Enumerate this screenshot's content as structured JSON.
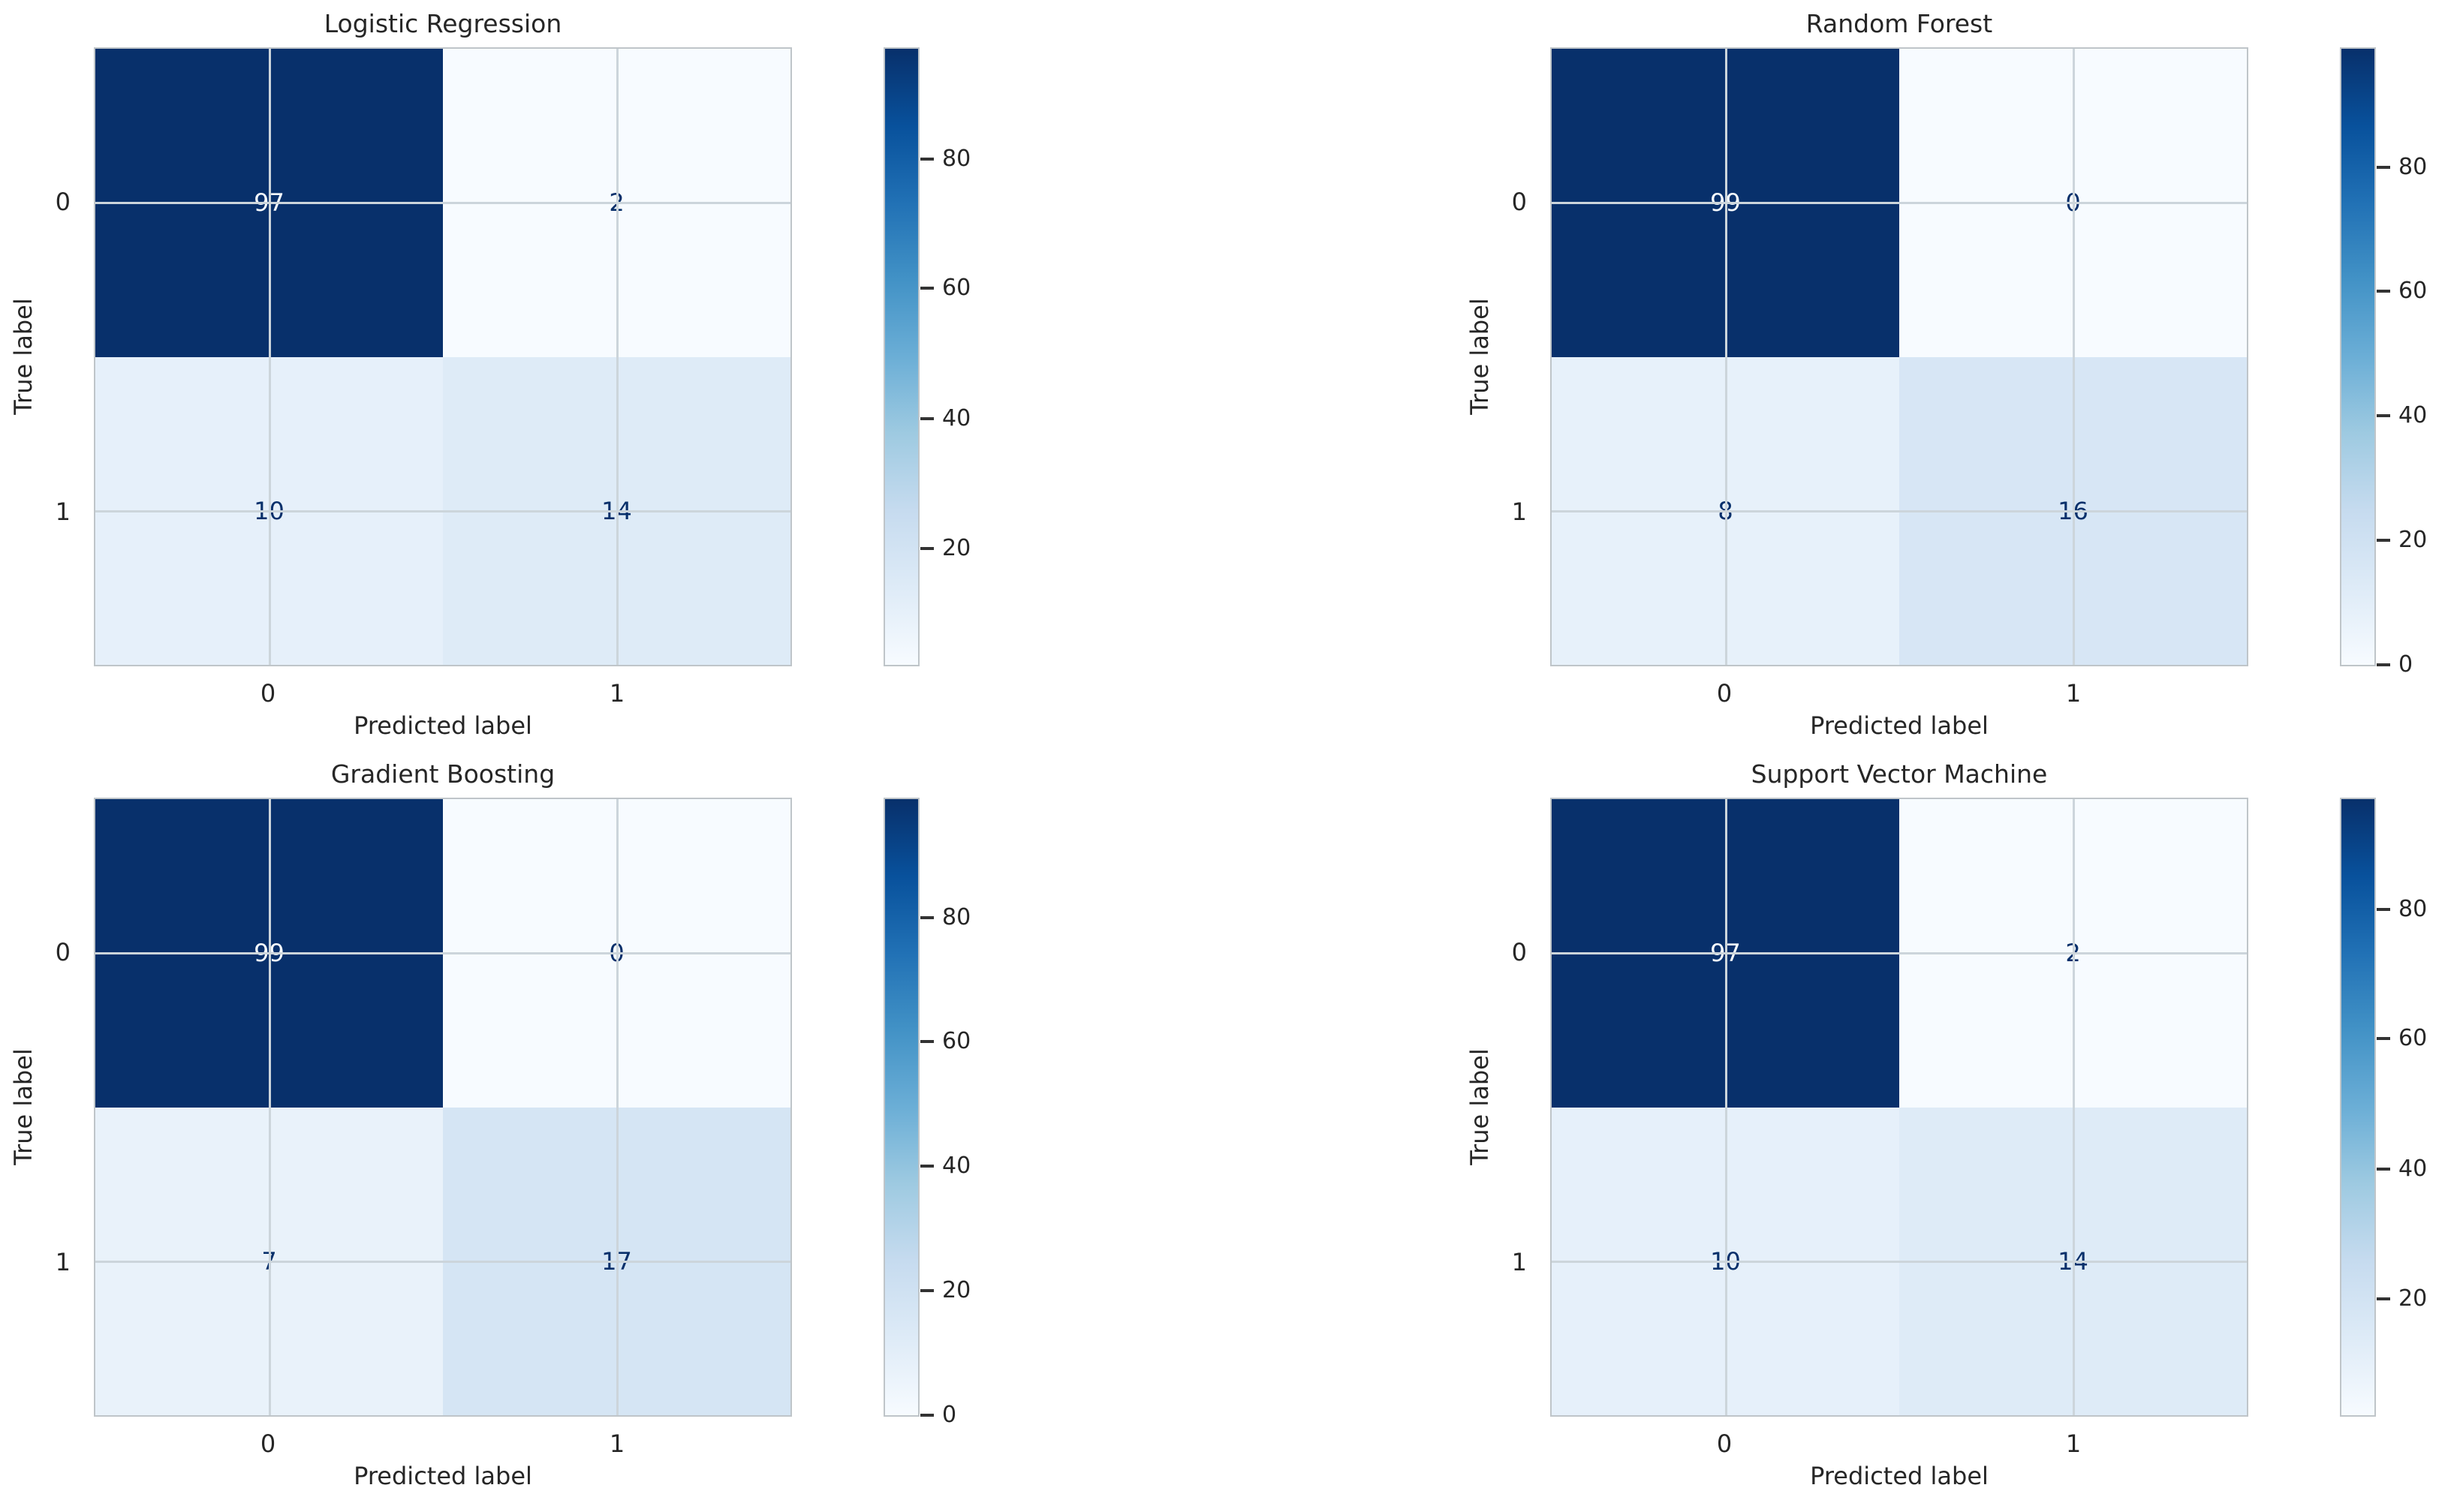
{
  "figure": {
    "background": "#ffffff",
    "text_color": "#262626",
    "grid_color": "#ccd5db",
    "spine_color": "#bfc5c9",
    "colormap_name": "Blues",
    "colormap_low": "#f7fbff",
    "colormap_high": "#08306b"
  },
  "subplots": [
    {
      "title": "Logistic Regression",
      "xlabel": "Predicted label",
      "ylabel": "True label",
      "xticks": [
        "0",
        "1"
      ],
      "yticks": [
        "0",
        "1"
      ],
      "cells": [
        {
          "value": "97",
          "bg": "#08306b",
          "text_color": "#f7fbff"
        },
        {
          "value": "2",
          "bg": "#f7fbff",
          "text_color": "#08306b"
        },
        {
          "value": "10",
          "bg": "#e6f0fa",
          "text_color": "#08306b"
        },
        {
          "value": "14",
          "bg": "#deebf7",
          "text_color": "#08306b"
        }
      ],
      "colorbar": {
        "ticks": [
          {
            "label": "20",
            "pos": "18.9%"
          },
          {
            "label": "40",
            "pos": "40%"
          },
          {
            "label": "60",
            "pos": "61.1%"
          },
          {
            "label": "80",
            "pos": "82.1%"
          }
        ]
      }
    },
    {
      "title": "Random Forest",
      "xlabel": "Predicted label",
      "ylabel": "True label",
      "xticks": [
        "0",
        "1"
      ],
      "yticks": [
        "0",
        "1"
      ],
      "cells": [
        {
          "value": "99",
          "bg": "#08306b",
          "text_color": "#f7fbff"
        },
        {
          "value": "0",
          "bg": "#f7fbff",
          "text_color": "#08306b"
        },
        {
          "value": "8",
          "bg": "#e7f1fa",
          "text_color": "#08306b"
        },
        {
          "value": "16",
          "bg": "#d7e6f5",
          "text_color": "#08306b"
        }
      ],
      "colorbar": {
        "ticks": [
          {
            "label": "0",
            "pos": "0%"
          },
          {
            "label": "20",
            "pos": "20.2%"
          },
          {
            "label": "40",
            "pos": "40.4%"
          },
          {
            "label": "60",
            "pos": "60.6%"
          },
          {
            "label": "80",
            "pos": "80.8%"
          }
        ]
      }
    },
    {
      "title": "Gradient Boosting",
      "xlabel": "Predicted label",
      "ylabel": "True label",
      "xticks": [
        "0",
        "1"
      ],
      "yticks": [
        "0",
        "1"
      ],
      "cells": [
        {
          "value": "99",
          "bg": "#08306b",
          "text_color": "#f7fbff"
        },
        {
          "value": "0",
          "bg": "#f7fbff",
          "text_color": "#08306b"
        },
        {
          "value": "7",
          "bg": "#e9f2fa",
          "text_color": "#08306b"
        },
        {
          "value": "17",
          "bg": "#d5e5f4",
          "text_color": "#08306b"
        }
      ],
      "colorbar": {
        "ticks": [
          {
            "label": "0",
            "pos": "0%"
          },
          {
            "label": "20",
            "pos": "20.2%"
          },
          {
            "label": "40",
            "pos": "40.4%"
          },
          {
            "label": "60",
            "pos": "60.6%"
          },
          {
            "label": "80",
            "pos": "80.8%"
          }
        ]
      }
    },
    {
      "title": "Support Vector Machine",
      "xlabel": "Predicted label",
      "ylabel": "True label",
      "xticks": [
        "0",
        "1"
      ],
      "yticks": [
        "0",
        "1"
      ],
      "cells": [
        {
          "value": "97",
          "bg": "#08306b",
          "text_color": "#f7fbff"
        },
        {
          "value": "2",
          "bg": "#f7fbff",
          "text_color": "#08306b"
        },
        {
          "value": "10",
          "bg": "#e6f0fa",
          "text_color": "#08306b"
        },
        {
          "value": "14",
          "bg": "#deebf7",
          "text_color": "#08306b"
        }
      ],
      "colorbar": {
        "ticks": [
          {
            "label": "20",
            "pos": "18.9%"
          },
          {
            "label": "40",
            "pos": "40%"
          },
          {
            "label": "60",
            "pos": "61.1%"
          },
          {
            "label": "80",
            "pos": "82.1%"
          }
        ]
      }
    }
  ],
  "chart_data": [
    {
      "type": "heatmap",
      "title": "Logistic Regression",
      "xlabel": "Predicted label",
      "ylabel": "True label",
      "x_categories": [
        "0",
        "1"
      ],
      "y_categories": [
        "0",
        "1"
      ],
      "matrix": [
        [
          97,
          2
        ],
        [
          10,
          14
        ]
      ],
      "colormap": "Blues",
      "colorbar_ticks": [
        20,
        40,
        60,
        80
      ],
      "legend_position": "right-colorbar",
      "grid": true
    },
    {
      "type": "heatmap",
      "title": "Random Forest",
      "xlabel": "Predicted label",
      "ylabel": "True label",
      "x_categories": [
        "0",
        "1"
      ],
      "y_categories": [
        "0",
        "1"
      ],
      "matrix": [
        [
          99,
          0
        ],
        [
          8,
          16
        ]
      ],
      "colormap": "Blues",
      "colorbar_ticks": [
        0,
        20,
        40,
        60,
        80
      ],
      "legend_position": "right-colorbar",
      "grid": true
    },
    {
      "type": "heatmap",
      "title": "Gradient Boosting",
      "xlabel": "Predicted label",
      "ylabel": "True label",
      "x_categories": [
        "0",
        "1"
      ],
      "y_categories": [
        "0",
        "1"
      ],
      "matrix": [
        [
          99,
          0
        ],
        [
          7,
          17
        ]
      ],
      "colormap": "Blues",
      "colorbar_ticks": [
        0,
        20,
        40,
        60,
        80
      ],
      "legend_position": "right-colorbar",
      "grid": true
    },
    {
      "type": "heatmap",
      "title": "Support Vector Machine",
      "xlabel": "Predicted label",
      "ylabel": "True label",
      "x_categories": [
        "0",
        "1"
      ],
      "y_categories": [
        "0",
        "1"
      ],
      "matrix": [
        [
          97,
          2
        ],
        [
          10,
          14
        ]
      ],
      "colormap": "Blues",
      "colorbar_ticks": [
        20,
        40,
        60,
        80
      ],
      "legend_position": "right-colorbar",
      "grid": true
    }
  ]
}
